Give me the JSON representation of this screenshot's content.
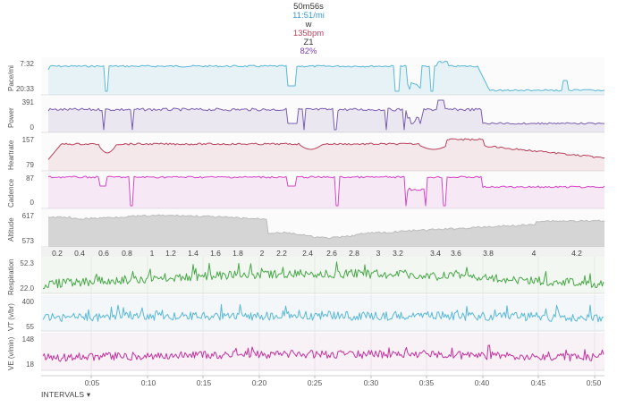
{
  "summary": {
    "duration": "50m56s",
    "pace": "11:51/mi",
    "power": "w",
    "heartrate": "135bpm",
    "zone": "Z1",
    "percent": "82%"
  },
  "colors": {
    "pace": "#59b8d8",
    "power": "#7a5cb0",
    "heartrate": "#b9425c",
    "cadence": "#d645c8",
    "altitude": "#bcbcbc",
    "respiration": "#48a848",
    "vt": "#59b8d8",
    "ve": "#c4339f",
    "summary_pace": "#3a9ad6",
    "summary_hr": "#b9425c",
    "summary_zone": "#555555",
    "summary_percent": "#7a3fb0"
  },
  "panels": {
    "pace": {
      "label": "Pace/mi",
      "top_tick": "7:32",
      "bottom_tick": "20:33"
    },
    "power": {
      "label": "Power",
      "top_tick": "391",
      "bottom_tick": "0"
    },
    "heartrate": {
      "label": "Heartrate",
      "top_tick": "157",
      "bottom_tick": "79"
    },
    "cadence": {
      "label": "Cadence",
      "top_tick": "87",
      "bottom_tick": "0"
    },
    "altitude": {
      "label": "Altitude",
      "top_tick": "617",
      "bottom_tick": "573"
    },
    "respiration": {
      "label": "Respiration",
      "top_tick": "52.3",
      "bottom_tick": "22.0"
    },
    "vt": {
      "label": "VT (v/br)",
      "top_tick": "400",
      "bottom_tick": "55"
    },
    "ve": {
      "label": "VE (v/min)",
      "top_tick": "148",
      "bottom_tick": "18"
    }
  },
  "distance_ticks": [
    "0.2",
    "0.4",
    "0.6",
    "0.8",
    "1",
    "1.2",
    "1.4",
    "1.6",
    "1.8",
    "2",
    "2.2",
    "2.4",
    "2.6",
    "2.8",
    "3",
    "3.2",
    "3.4",
    "3.6",
    "3.8",
    "4",
    "4.2"
  ],
  "time_ticks": [
    "0:05",
    "0:10",
    "0:15",
    "0:20",
    "0:25",
    "0:30",
    "0:35",
    "0:40",
    "0:45",
    "0:50"
  ],
  "intervals_button": "INTERVALS ▾"
}
